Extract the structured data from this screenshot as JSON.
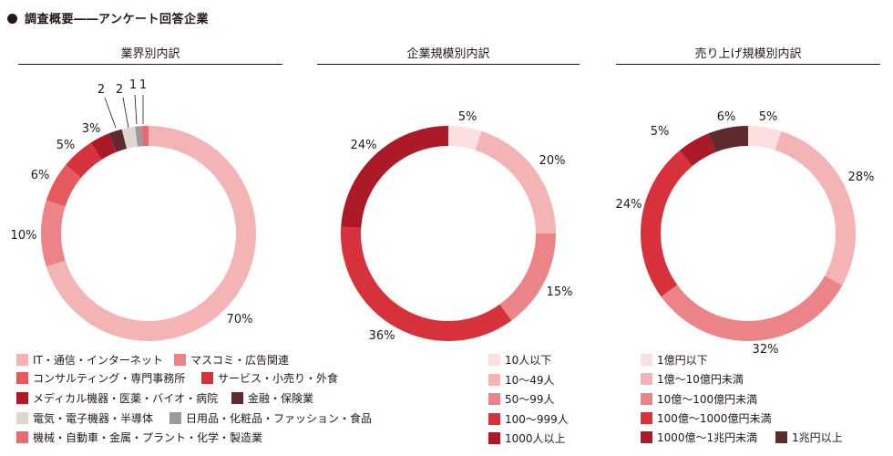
{
  "title": "調査概要――アンケート回答企業",
  "chart_data": [
    {
      "type": "pie",
      "title": "業界別内訳",
      "series": [
        {
          "name": "IT・通信・インターネット",
          "value": 70,
          "label": "70%",
          "color": "#f4b4b6"
        },
        {
          "name": "マスコミ・広告関連",
          "value": 10,
          "label": "10%",
          "color": "#ec8388"
        },
        {
          "name": "コンサルティング・専門事務所",
          "value": 6,
          "label": "6%",
          "color": "#e65a5e"
        },
        {
          "name": "サービス・小売り・外食",
          "value": 5,
          "label": "5%",
          "color": "#d7323c"
        },
        {
          "name": "メディカル機器・医薬・バイオ・病院",
          "value": 3,
          "label": "3%",
          "color": "#ab1a26"
        },
        {
          "name": "金融・保険業",
          "value": 2,
          "label": "2",
          "color": "#5f2a2c"
        },
        {
          "name": "電気・電子機器・半導体",
          "value": 2,
          "label": "2",
          "color": "#e0d6d0"
        },
        {
          "name": "日用品・化粧品・ファッション・食品",
          "value": 1,
          "label": "1",
          "color": "#9a9a9a"
        },
        {
          "name": "機械・自動車・金属・プラント・化学・製造業",
          "value": 1,
          "label": "1",
          "color": "#e8696f"
        }
      ]
    },
    {
      "type": "pie",
      "title": "企業規模別内訳",
      "series": [
        {
          "name": "10人以下",
          "value": 5,
          "label": "5%",
          "color": "#fbe0df"
        },
        {
          "name": "10～49人",
          "value": 20,
          "label": "20%",
          "color": "#f4b4b6"
        },
        {
          "name": "50～99人",
          "value": 15,
          "label": "15%",
          "color": "#ec8388"
        },
        {
          "name": "100～999人",
          "value": 36,
          "label": "36%",
          "color": "#d7323c"
        },
        {
          "name": "1000人以上",
          "value": 24,
          "label": "24%",
          "color": "#ab1a26"
        }
      ]
    },
    {
      "type": "pie",
      "title": "売り上げ規模別内訳",
      "series": [
        {
          "name": "1億円以下",
          "value": 5,
          "label": "5%",
          "color": "#fbe0df"
        },
        {
          "name": "1億～10億円未満",
          "value": 28,
          "label": "28%",
          "color": "#f4b4b6"
        },
        {
          "name": "10億～100億円未満",
          "value": 32,
          "label": "32%",
          "color": "#ec8388"
        },
        {
          "name": "100億～1000億円未満",
          "value": 24,
          "label": "24%",
          "color": "#d7323c"
        },
        {
          "name": "1000億～1兆円未満",
          "value": 5,
          "label": "5%",
          "color": "#ab1a26"
        },
        {
          "name": "1兆円以上",
          "value": 6,
          "label": "6%",
          "color": "#5f2a2c"
        }
      ]
    }
  ]
}
